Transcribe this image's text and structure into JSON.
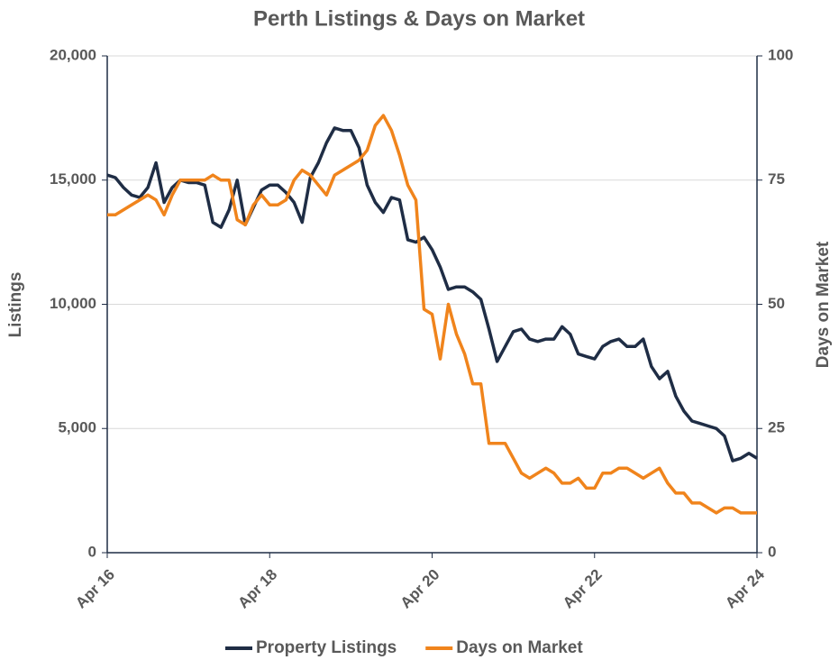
{
  "chart_data": {
    "type": "line",
    "title": "Perth Listings & Days on Market",
    "y_label": "Listings",
    "y2_label": "Days on Market",
    "xlim": [
      2016.25,
      2024.25
    ],
    "xticks": [
      {
        "value": 2016.25,
        "label": "Apr 16"
      },
      {
        "value": 2018.25,
        "label": "Apr 18"
      },
      {
        "value": 2020.25,
        "label": "Apr 20"
      },
      {
        "value": 2022.25,
        "label": "Apr 22"
      },
      {
        "value": 2024.25,
        "label": "Apr 24"
      }
    ],
    "ylim": [
      0,
      20000
    ],
    "yticks": [
      {
        "value": 0,
        "label": "0"
      },
      {
        "value": 5000,
        "label": "5,000"
      },
      {
        "value": 10000,
        "label": "10,000"
      },
      {
        "value": 15000,
        "label": "15,000"
      },
      {
        "value": 20000,
        "label": "20,000"
      }
    ],
    "y2lim": [
      0,
      100
    ],
    "y2ticks": [
      0,
      25,
      50,
      75,
      100
    ],
    "grid": true,
    "legend": "bottom",
    "x": [
      2016.25,
      2016.35,
      2016.45,
      2016.55,
      2016.65,
      2016.75,
      2016.85,
      2016.95,
      2017.05,
      2017.15,
      2017.25,
      2017.35,
      2017.45,
      2017.55,
      2017.65,
      2017.75,
      2017.85,
      2017.95,
      2018.05,
      2018.15,
      2018.25,
      2018.35,
      2018.45,
      2018.55,
      2018.65,
      2018.75,
      2018.85,
      2018.95,
      2019.05,
      2019.15,
      2019.25,
      2019.35,
      2019.45,
      2019.55,
      2019.65,
      2019.75,
      2019.85,
      2019.95,
      2020.05,
      2020.15,
      2020.25,
      2020.35,
      2020.45,
      2020.55,
      2020.65,
      2020.75,
      2020.85,
      2020.95,
      2021.05,
      2021.15,
      2021.25,
      2021.35,
      2021.45,
      2021.55,
      2021.65,
      2021.75,
      2021.85,
      2021.95,
      2022.05,
      2022.15,
      2022.25,
      2022.35,
      2022.45,
      2022.55,
      2022.65,
      2022.75,
      2022.85,
      2022.95,
      2023.05,
      2023.15,
      2023.25,
      2023.35,
      2023.45,
      2023.55,
      2023.65,
      2023.75,
      2023.85,
      2023.95,
      2024.05,
      2024.15,
      2024.25
    ],
    "series": [
      {
        "name": "Property Listings",
        "color": "#1f2d45",
        "values": [
          15200,
          15100,
          14700,
          14400,
          14300,
          14700,
          15700,
          14100,
          14700,
          15000,
          14900,
          14900,
          14800,
          13300,
          13100,
          13800,
          15000,
          13200,
          13900,
          14600,
          14800,
          14800,
          14500,
          14100,
          13300,
          15100,
          15700,
          16500,
          17100,
          17000,
          17000,
          16300,
          14800,
          14100,
          13700,
          14300,
          14200,
          12600,
          12500,
          12700,
          12200,
          11500,
          10600,
          10700,
          10700,
          10500,
          10200,
          9000,
          7700,
          8300,
          8900,
          9000,
          8600,
          8500,
          8600,
          8600,
          9100,
          8800,
          8000,
          7900,
          7800,
          8300,
          8500,
          8600,
          8300,
          8300,
          8600,
          7500,
          7000,
          7300,
          6300,
          5700,
          5300,
          5200,
          5100,
          5000,
          4700,
          3700,
          3800,
          4000,
          3800
        ]
      },
      {
        "name": "Days on Market",
        "color": "#f0841c",
        "axis": "y2",
        "values": [
          68,
          68,
          69,
          70,
          71,
          72,
          71,
          68,
          72,
          75,
          75,
          75,
          75,
          76,
          75,
          75,
          67,
          66,
          70,
          72,
          70,
          70,
          71,
          75,
          77,
          76,
          74,
          72,
          76,
          77,
          78,
          79,
          81,
          86,
          88,
          85,
          80,
          74,
          71,
          49,
          48,
          39,
          50,
          44,
          40,
          34,
          34,
          22,
          22,
          22,
          19,
          16,
          15,
          16,
          17,
          16,
          14,
          14,
          15,
          13,
          13,
          16,
          16,
          17,
          17,
          16,
          15,
          16,
          17,
          14,
          12,
          12,
          10,
          10,
          9,
          8,
          9,
          9,
          8,
          8,
          8
        ]
      }
    ]
  }
}
